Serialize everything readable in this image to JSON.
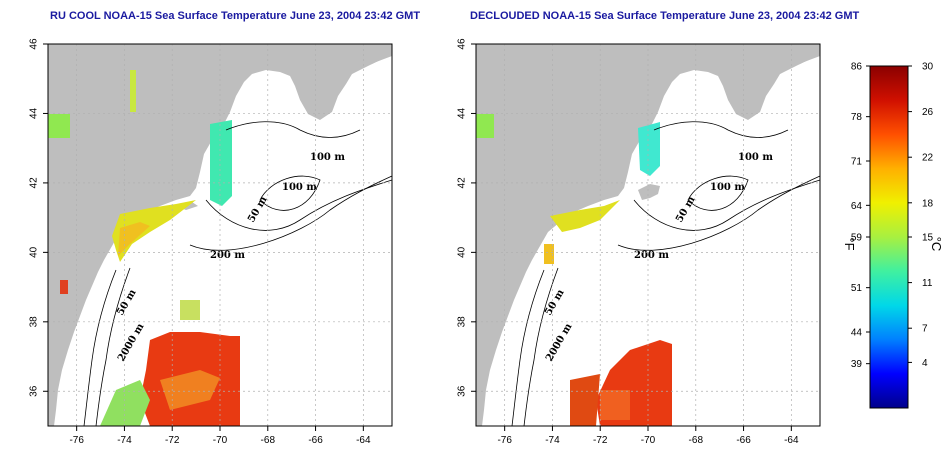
{
  "panels": [
    {
      "id": "left",
      "title": "RU COOL NOAA-15 Sea Surface Temperature June 23, 2004 23:42 GMT"
    },
    {
      "id": "right",
      "title": "DECLOUDED NOAA-15 Sea Surface Temperature June 23, 2004 23:42 GMT"
    }
  ],
  "map_axes": {
    "lon_ticks": [
      "-76",
      "-74",
      "-72",
      "-70",
      "-68",
      "-66",
      "-64"
    ],
    "lat_ticks": [
      "36",
      "38",
      "40",
      "42",
      "44",
      "46"
    ],
    "lon_range": [
      -77.2,
      -62.8
    ],
    "lat_range": [
      35.0,
      46.0
    ]
  },
  "contours": {
    "labels": [
      "100 m",
      "100 m",
      "50 m",
      "200 m",
      "50 m",
      "2000 m"
    ]
  },
  "colorbar": {
    "fahrenheit_ticks": [
      "86",
      "78",
      "71",
      "64",
      "59",
      "51",
      "44",
      "39"
    ],
    "celsius_ticks": [
      "30",
      "26",
      "22",
      "18",
      "15",
      "11",
      "7",
      "4"
    ],
    "unit_f": "°F",
    "unit_c": "°C",
    "range_c": [
      0,
      30
    ],
    "colors": [
      "#00008b",
      "#0000ff",
      "#0080ff",
      "#00d8e8",
      "#40f0a0",
      "#a8f040",
      "#f0f000",
      "#ffb000",
      "#ff5000",
      "#d01000",
      "#8b0000"
    ]
  },
  "colors": {
    "land": "#bebebe",
    "ocean": "#ffffff",
    "title": "#1a1aa0",
    "grid": "#b0b0b0"
  }
}
